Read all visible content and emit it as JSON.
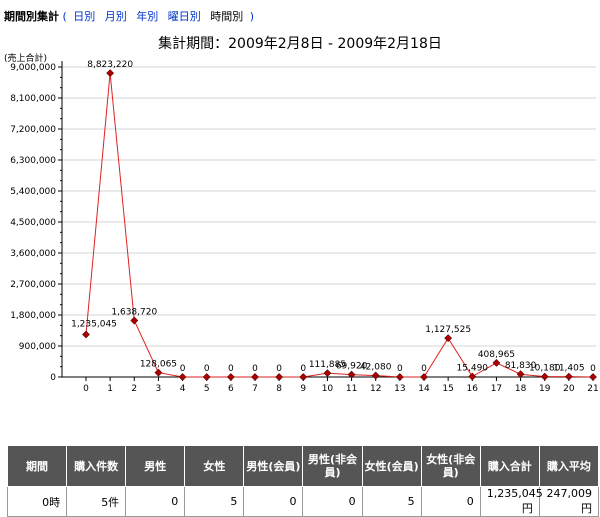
{
  "header": {
    "title": "期間別集計",
    "paren_open": "(",
    "paren_close": ")",
    "links": [
      "日別",
      "月別",
      "年別",
      "曜日別"
    ],
    "current": "時間別"
  },
  "period_label": "集計期間：2009年2月8日 - 2009年2月18日",
  "chart_data": {
    "type": "line",
    "ylabel": "(売上合計)",
    "ylim": [
      0,
      9000000
    ],
    "yticks": [
      0,
      900000,
      1800000,
      2700000,
      3600000,
      4500000,
      5400000,
      6300000,
      7200000,
      8100000,
      9000000
    ],
    "ytick_labels": [
      "0",
      "900,000",
      "1,800,000",
      "2,700,000",
      "3,600,000",
      "4,500,000",
      "5,400,000",
      "6,300,000",
      "7,200,000",
      "8,100,000",
      "9,000,000"
    ],
    "x": [
      0,
      1,
      2,
      3,
      4,
      5,
      6,
      7,
      8,
      9,
      10,
      11,
      12,
      13,
      14,
      15,
      16,
      17,
      18,
      19,
      20,
      21
    ],
    "values": [
      1235045,
      8823220,
      1638720,
      128065,
      0,
      0,
      0,
      0,
      0,
      0,
      111885,
      69920,
      42080,
      0,
      0,
      1127525,
      15490,
      408965,
      81830,
      10180,
      11405,
      0
    ],
    "value_labels": [
      "1,235,045",
      "8,823,220",
      "1,638,720",
      "128,065",
      "0",
      "0",
      "0",
      "0",
      "0",
      "0",
      "111,885",
      "69,920",
      "42,080",
      "0",
      "0",
      "1,127,525",
      "15,490",
      "408,965",
      "81,830",
      "10,180",
      "11,405",
      "0"
    ],
    "line_color": "#dd2222",
    "marker_color": "#aa0000"
  },
  "table": {
    "headers": [
      "期間",
      "購入件数",
      "男性",
      "女性",
      "男性(会員)",
      "男性(非会員)",
      "女性(会員)",
      "女性(非会員)",
      "購入合計",
      "購入平均"
    ],
    "rows": [
      [
        "0時",
        "5件",
        "0",
        "5",
        "0",
        "0",
        "5",
        "0",
        "1,235,045円",
        "247,009円"
      ]
    ]
  },
  "colors": {
    "link": "#0033cc",
    "table_header_bg": "#555555"
  }
}
